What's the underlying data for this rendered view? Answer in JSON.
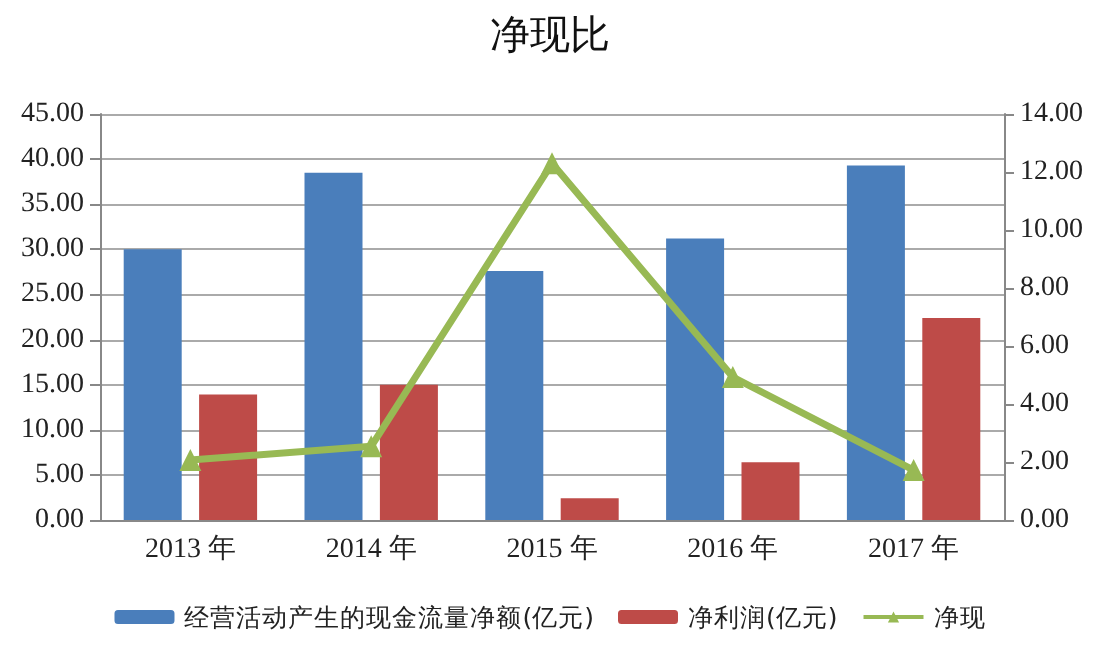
{
  "chart_data": {
    "type": "bar",
    "title": "净现比",
    "categories": [
      "2013 年",
      "2014 年",
      "2015 年",
      "2016 年",
      "2017 年"
    ],
    "series": [
      {
        "name": "经营活动产生的现金流量净额(亿元)",
        "color": "#4a7ebb",
        "values": [
          30.0,
          38.5,
          27.6,
          31.2,
          39.3
        ]
      },
      {
        "name": "净利润(亿元)",
        "color": "#be4b48",
        "values": [
          13.9,
          15.0,
          2.4,
          6.4,
          22.4
        ]
      },
      {
        "name": "净现",
        "color": "#98b954",
        "type": "line",
        "axis": "y2",
        "values": [
          2.07,
          2.54,
          12.3,
          4.93,
          1.72
        ]
      }
    ],
    "ylim": [
      0,
      45
    ],
    "yticks": [
      {
        "value": 0,
        "label": "0.00"
      },
      {
        "value": 5,
        "label": "5.00"
      },
      {
        "value": 10,
        "label": "10.00"
      },
      {
        "value": 15,
        "label": "15.00"
      },
      {
        "value": 20,
        "label": "20.00"
      },
      {
        "value": 25,
        "label": "25.00"
      },
      {
        "value": 30,
        "label": "30.00"
      },
      {
        "value": 35,
        "label": "35.00"
      },
      {
        "value": 40,
        "label": "40.00"
      },
      {
        "value": 45,
        "label": "45.00"
      }
    ],
    "y2lim": [
      0,
      14
    ],
    "y2ticks": [
      {
        "value": 0,
        "label": "0.00"
      },
      {
        "value": 2,
        "label": "2.00"
      },
      {
        "value": 4,
        "label": "4.00"
      },
      {
        "value": 6,
        "label": "6.00"
      },
      {
        "value": 8,
        "label": "8.00"
      },
      {
        "value": 10,
        "label": "10.00"
      },
      {
        "value": 12,
        "label": "12.00"
      },
      {
        "value": 14,
        "label": "14.00"
      }
    ],
    "grid": "y",
    "legend": "bottom",
    "marker": "triangle"
  }
}
